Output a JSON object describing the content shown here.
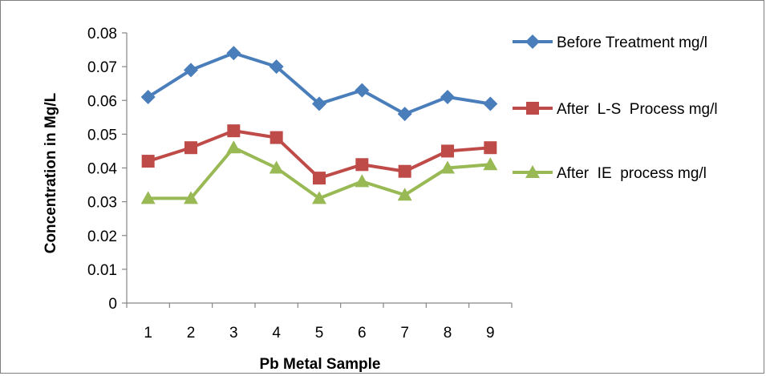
{
  "chart_data": {
    "type": "line",
    "title": "",
    "xlabel": "Pb Metal Sample",
    "ylabel": "Concentration in Mg/L",
    "categories": [
      "1",
      "2",
      "3",
      "4",
      "5",
      "6",
      "7",
      "8",
      "9"
    ],
    "ylim": [
      0,
      0.08
    ],
    "yticks": [
      "0",
      "0.01",
      "0.02",
      "0.03",
      "0.04",
      "0.05",
      "0.06",
      "0.07",
      "0.08"
    ],
    "grid": false,
    "legend_position": "right",
    "series": [
      {
        "name": "Before Treatment mg/l",
        "marker": "diamond",
        "color": "#4a7ebb",
        "values": [
          0.061,
          0.069,
          0.074,
          0.07,
          0.059,
          0.063,
          0.056,
          0.061,
          0.059
        ]
      },
      {
        "name": "After  L-S  Process mg/l",
        "marker": "square",
        "color": "#be4b48",
        "values": [
          0.042,
          0.046,
          0.051,
          0.049,
          0.037,
          0.041,
          0.039,
          0.045,
          0.046
        ]
      },
      {
        "name": "After  IE  process mg/l",
        "marker": "triangle",
        "color": "#98b954",
        "values": [
          0.031,
          0.031,
          0.046,
          0.04,
          0.031,
          0.036,
          0.032,
          0.04,
          0.041
        ]
      }
    ]
  }
}
